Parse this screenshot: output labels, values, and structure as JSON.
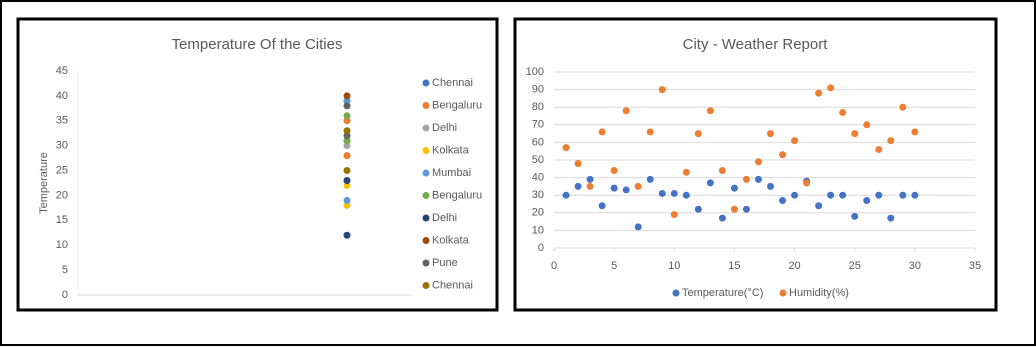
{
  "chart_data": [
    {
      "type": "scatter",
      "title": "Temperature Of the Cities",
      "ylabel": "Temperature",
      "ylim": [
        0,
        45
      ],
      "yticks": [
        0,
        5,
        10,
        15,
        20,
        25,
        30,
        35,
        40,
        45
      ],
      "grid": false,
      "legend": "right",
      "series": [
        {
          "name": "Chennai",
          "color": "#4472c4",
          "values": [
            31,
            39
          ]
        },
        {
          "name": "Bengaluru",
          "color": "#ed7d31",
          "values": [
            35,
            28
          ]
        },
        {
          "name": "Delhi",
          "color": "#a5a5a5",
          "values": [
            30,
            31
          ]
        },
        {
          "name": "Kolkata",
          "color": "#ffc000",
          "values": [
            22,
            18
          ]
        },
        {
          "name": "Mumbai",
          "color": "#5b9bd5",
          "values": [
            19,
            39
          ]
        },
        {
          "name": "Bengaluru",
          "color": "#70ad47",
          "values": [
            36,
            31
          ]
        },
        {
          "name": "Delhi",
          "color": "#264478",
          "values": [
            12,
            23
          ]
        },
        {
          "name": "Kolkata",
          "color": "#9e480e",
          "values": [
            40
          ]
        },
        {
          "name": "Pune",
          "color": "#636363",
          "values": [
            38,
            32
          ]
        },
        {
          "name": "Chennai",
          "color": "#997300",
          "values": [
            33,
            25
          ]
        }
      ]
    },
    {
      "type": "scatter",
      "title": "City - Weather Report",
      "xlim": [
        0,
        35
      ],
      "xticks": [
        0,
        5,
        10,
        15,
        20,
        25,
        30,
        35
      ],
      "ylim": [
        0,
        100
      ],
      "yticks": [
        0,
        10,
        20,
        30,
        40,
        50,
        60,
        70,
        80,
        90,
        100
      ],
      "grid": true,
      "legend": "bottom",
      "x": [
        1,
        2,
        3,
        4,
        5,
        6,
        7,
        8,
        9,
        10,
        11,
        12,
        13,
        14,
        15,
        16,
        17,
        18,
        19,
        20,
        21,
        22,
        23,
        24,
        25,
        26,
        27,
        28,
        29,
        30
      ],
      "series": [
        {
          "name": "Temperature(°C)",
          "color": "#4472c4",
          "values": [
            30,
            35,
            39,
            24,
            34,
            33,
            12,
            39,
            31,
            31,
            30,
            22,
            37,
            17,
            34,
            22,
            39,
            35,
            27,
            30,
            38,
            24,
            30,
            30,
            18,
            27,
            30,
            17,
            30,
            30
          ]
        },
        {
          "name": "Humidity(%)",
          "color": "#ed7d31",
          "values": [
            57,
            48,
            35,
            66,
            44,
            78,
            35,
            66,
            90,
            19,
            43,
            65,
            78,
            44,
            22,
            39,
            49,
            65,
            53,
            61,
            37,
            88,
            91,
            77,
            65,
            70,
            56,
            61,
            80,
            66
          ]
        }
      ]
    }
  ]
}
